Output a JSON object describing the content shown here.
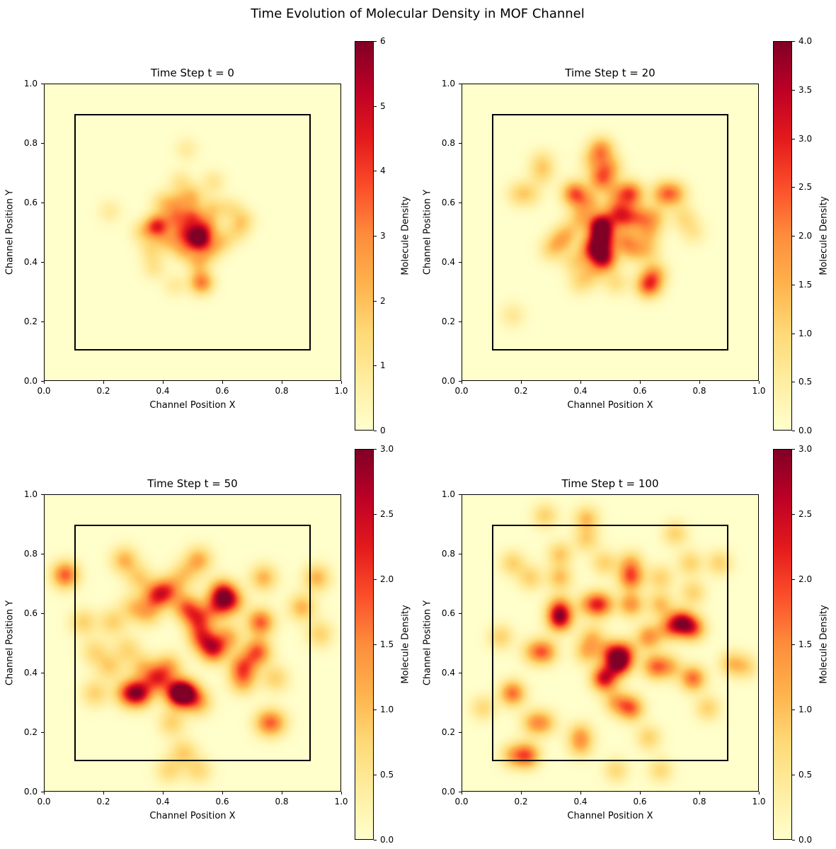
{
  "figure": {
    "suptitle": "Time Evolution of Molecular Density in MOF Channel",
    "background": "#ffffff",
    "text_color": "#000000"
  },
  "colormap": {
    "name": "YlOrRd",
    "stops": [
      {
        "t": 0.0,
        "color": "#ffffcc"
      },
      {
        "t": 0.125,
        "color": "#ffeda0"
      },
      {
        "t": 0.25,
        "color": "#fed976"
      },
      {
        "t": 0.375,
        "color": "#feb24c"
      },
      {
        "t": 0.5,
        "color": "#fd8d3c"
      },
      {
        "t": 0.625,
        "color": "#fc4e2a"
      },
      {
        "t": 0.75,
        "color": "#e31a1c"
      },
      {
        "t": 0.875,
        "color": "#bd0026"
      },
      {
        "t": 1.0,
        "color": "#800026"
      }
    ]
  },
  "chart_data": {
    "type": "heatmap",
    "layout": "2x2 subplots, each with vertical colorbar",
    "suptitle": "Time Evolution of Molecular Density in MOF Channel",
    "panels": [
      {
        "title": "Time Step t = 0",
        "xlabel": "Channel Position X",
        "ylabel": "Channel Position Y",
        "xlim": [
          0,
          1
        ],
        "ylim": [
          0,
          1
        ],
        "xtick_values": [
          0,
          0.2,
          0.4,
          0.6,
          0.8,
          1.0
        ],
        "xtick_labels": [
          "0.0",
          "0.2",
          "0.4",
          "0.6",
          "0.8",
          "1.0"
        ],
        "ytick_values": [
          0,
          0.2,
          0.4,
          0.6,
          0.8,
          1.0
        ],
        "ytick_labels": [
          "0.0",
          "0.2",
          "0.4",
          "0.6",
          "0.8",
          "1.0"
        ],
        "channel_box": {
          "x0": 0.1,
          "y0": 0.1,
          "x1": 0.9,
          "y1": 0.9
        },
        "colorbar": {
          "label": "Molecule Density",
          "vmin": 0,
          "vmax": 6,
          "tick_values": [
            0,
            1,
            2,
            3,
            4,
            5,
            6
          ],
          "tick_labels": [
            "0",
            "1",
            "2",
            "3",
            "4",
            "5",
            "6"
          ]
        },
        "smoothing_sigma": 0.028,
        "density_points": [
          [
            0.52,
            0.48,
            6.0
          ],
          [
            0.38,
            0.52,
            4.2
          ],
          [
            0.5,
            0.55,
            3.0
          ],
          [
            0.53,
            0.33,
            3.2
          ],
          [
            0.47,
            0.5,
            2.5
          ],
          [
            0.44,
            0.55,
            2.2
          ],
          [
            0.55,
            0.52,
            2.2
          ],
          [
            0.47,
            0.44,
            1.8
          ],
          [
            0.56,
            0.44,
            1.6
          ],
          [
            0.42,
            0.47,
            1.6
          ],
          [
            0.4,
            0.6,
            1.4
          ],
          [
            0.5,
            0.62,
            1.8
          ],
          [
            0.57,
            0.58,
            1.4
          ],
          [
            0.67,
            0.54,
            1.4
          ],
          [
            0.63,
            0.58,
            1.0
          ],
          [
            0.65,
            0.5,
            1.0
          ],
          [
            0.46,
            0.67,
            1.0
          ],
          [
            0.57,
            0.67,
            1.0
          ],
          [
            0.48,
            0.78,
            0.8
          ],
          [
            0.22,
            0.57,
            0.8
          ],
          [
            0.37,
            0.38,
            1.0
          ],
          [
            0.44,
            0.32,
            0.8
          ],
          [
            0.36,
            0.44,
            1.2
          ],
          [
            0.52,
            0.4,
            1.8
          ],
          [
            0.6,
            0.47,
            1.4
          ],
          [
            0.33,
            0.5,
            1.2
          ],
          [
            0.45,
            0.6,
            1.5
          ]
        ]
      },
      {
        "title": "Time Step t = 20",
        "xlabel": "Channel Position X",
        "ylabel": "Channel Position Y",
        "xlim": [
          0,
          1
        ],
        "ylim": [
          0,
          1
        ],
        "xtick_values": [
          0,
          0.2,
          0.4,
          0.6,
          0.8,
          1.0
        ],
        "xtick_labels": [
          "0.0",
          "0.2",
          "0.4",
          "0.6",
          "0.8",
          "1.0"
        ],
        "ytick_values": [
          0,
          0.2,
          0.4,
          0.6,
          0.8,
          1.0
        ],
        "ytick_labels": [
          "0.0",
          "0.2",
          "0.4",
          "0.6",
          "0.8",
          "1.0"
        ],
        "channel_box": {
          "x0": 0.1,
          "y0": 0.1,
          "x1": 0.9,
          "y1": 0.9
        },
        "colorbar": {
          "label": "Molecule Density",
          "vmin": 0,
          "vmax": 4,
          "tick_values": [
            0,
            0.5,
            1,
            1.5,
            2,
            2.5,
            3,
            3.5,
            4
          ],
          "tick_labels": [
            "0.0",
            "0.5",
            "1.0",
            "1.5",
            "2.0",
            "2.5",
            "3.0",
            "3.5",
            "4.0"
          ]
        },
        "smoothing_sigma": 0.03,
        "density_points": [
          [
            0.47,
            0.52,
            4.0
          ],
          [
            0.47,
            0.47,
            2.8
          ],
          [
            0.48,
            0.41,
            3.0
          ],
          [
            0.44,
            0.44,
            2.2
          ],
          [
            0.38,
            0.63,
            2.4
          ],
          [
            0.57,
            0.63,
            2.4
          ],
          [
            0.47,
            0.78,
            1.8
          ],
          [
            0.47,
            0.68,
            2.0
          ],
          [
            0.5,
            0.72,
            1.3
          ],
          [
            0.63,
            0.32,
            2.4
          ],
          [
            0.65,
            0.36,
            1.4
          ],
          [
            0.68,
            0.63,
            1.6
          ],
          [
            0.72,
            0.63,
            1.4
          ],
          [
            0.55,
            0.55,
            1.8
          ],
          [
            0.6,
            0.55,
            1.4
          ],
          [
            0.63,
            0.5,
            1.1
          ],
          [
            0.65,
            0.55,
            1.1
          ],
          [
            0.55,
            0.47,
            1.4
          ],
          [
            0.58,
            0.44,
            1.1
          ],
          [
            0.4,
            0.55,
            1.1
          ],
          [
            0.33,
            0.47,
            1.1
          ],
          [
            0.36,
            0.5,
            0.9
          ],
          [
            0.3,
            0.44,
            0.8
          ],
          [
            0.19,
            0.63,
            0.8
          ],
          [
            0.23,
            0.63,
            0.7
          ],
          [
            0.27,
            0.7,
            0.8
          ],
          [
            0.27,
            0.74,
            0.7
          ],
          [
            0.44,
            0.74,
            0.9
          ],
          [
            0.52,
            0.63,
            1.0
          ],
          [
            0.63,
            0.44,
            0.9
          ],
          [
            0.17,
            0.22,
            0.6
          ],
          [
            0.4,
            0.33,
            0.8
          ],
          [
            0.44,
            0.36,
            0.8
          ],
          [
            0.52,
            0.33,
            0.8
          ],
          [
            0.75,
            0.55,
            0.8
          ],
          [
            0.78,
            0.5,
            0.6
          ],
          [
            0.52,
            0.57,
            1.5
          ],
          [
            0.43,
            0.6,
            1.2
          ],
          [
            0.38,
            0.4,
            0.9
          ]
        ]
      },
      {
        "title": "Time Step t = 50",
        "xlabel": "Channel Position X",
        "ylabel": "Channel Position Y",
        "xlim": [
          0,
          1
        ],
        "ylim": [
          0,
          1
        ],
        "xtick_values": [
          0,
          0.2,
          0.4,
          0.6,
          0.8,
          1.0
        ],
        "xtick_labels": [
          "0.0",
          "0.2",
          "0.4",
          "0.6",
          "0.8",
          "1.0"
        ],
        "ytick_values": [
          0,
          0.2,
          0.4,
          0.6,
          0.8,
          1.0
        ],
        "ytick_labels": [
          "0.0",
          "0.2",
          "0.4",
          "0.6",
          "0.8",
          "1.0"
        ],
        "channel_box": {
          "x0": 0.1,
          "y0": 0.1,
          "x1": 0.9,
          "y1": 0.9
        },
        "colorbar": {
          "label": "Molecule Density",
          "vmin": 0,
          "vmax": 3,
          "tick_values": [
            0,
            0.5,
            1,
            1.5,
            2,
            2.5,
            3
          ],
          "tick_labels": [
            "0.0",
            "0.5",
            "1.0",
            "1.5",
            "2.0",
            "2.5",
            "3.0"
          ]
        },
        "smoothing_sigma": 0.032,
        "density_points": [
          [
            0.07,
            0.73,
            1.8
          ],
          [
            0.27,
            0.78,
            1.1
          ],
          [
            0.52,
            0.78,
            1.2
          ],
          [
            0.32,
            0.72,
            0.8
          ],
          [
            0.47,
            0.73,
            0.8
          ],
          [
            0.74,
            0.72,
            1.1
          ],
          [
            0.92,
            0.72,
            1.1
          ],
          [
            0.38,
            0.66,
            1.8
          ],
          [
            0.42,
            0.68,
            1.3
          ],
          [
            0.48,
            0.62,
            1.6
          ],
          [
            0.52,
            0.58,
            1.6
          ],
          [
            0.6,
            0.67,
            2.0
          ],
          [
            0.63,
            0.64,
            1.6
          ],
          [
            0.58,
            0.62,
            1.3
          ],
          [
            0.73,
            0.57,
            1.8
          ],
          [
            0.87,
            0.62,
            1.1
          ],
          [
            0.93,
            0.53,
            0.8
          ],
          [
            0.13,
            0.57,
            0.8
          ],
          [
            0.23,
            0.57,
            0.8
          ],
          [
            0.17,
            0.47,
            0.7
          ],
          [
            0.28,
            0.48,
            0.7
          ],
          [
            0.57,
            0.48,
            2.2
          ],
          [
            0.53,
            0.52,
            1.6
          ],
          [
            0.62,
            0.52,
            1.1
          ],
          [
            0.72,
            0.47,
            1.8
          ],
          [
            0.67,
            0.42,
            1.6
          ],
          [
            0.67,
            0.37,
            1.1
          ],
          [
            0.38,
            0.38,
            1.8
          ],
          [
            0.42,
            0.42,
            1.1
          ],
          [
            0.32,
            0.33,
            2.3
          ],
          [
            0.28,
            0.33,
            1.4
          ],
          [
            0.45,
            0.33,
            2.5
          ],
          [
            0.48,
            0.33,
            2.0
          ],
          [
            0.52,
            0.3,
            1.1
          ],
          [
            0.17,
            0.33,
            0.8
          ],
          [
            0.22,
            0.42,
            0.8
          ],
          [
            0.33,
            0.42,
            0.8
          ],
          [
            0.78,
            0.38,
            0.8
          ],
          [
            0.75,
            0.23,
            1.1
          ],
          [
            0.78,
            0.23,
            0.9
          ],
          [
            0.43,
            0.23,
            0.8
          ],
          [
            0.47,
            0.13,
            0.8
          ],
          [
            0.42,
            0.07,
            0.7
          ],
          [
            0.52,
            0.07,
            0.7
          ],
          [
            0.35,
            0.6,
            0.9
          ],
          [
            0.3,
            0.62,
            0.8
          ]
        ]
      },
      {
        "title": "Time Step t = 100",
        "xlabel": "Channel Position X",
        "ylabel": "Channel Position Y",
        "xlim": [
          0,
          1
        ],
        "ylim": [
          0,
          1
        ],
        "xtick_values": [
          0,
          0.2,
          0.4,
          0.6,
          0.8,
          1.0
        ],
        "xtick_labels": [
          "0.0",
          "0.2",
          "0.4",
          "0.6",
          "0.8",
          "1.0"
        ],
        "ytick_values": [
          0,
          0.2,
          0.4,
          0.6,
          0.8,
          1.0
        ],
        "ytick_labels": [
          "0.0",
          "0.2",
          "0.4",
          "0.6",
          "0.8",
          "1.0"
        ],
        "channel_box": {
          "x0": 0.1,
          "y0": 0.1,
          "x1": 0.9,
          "y1": 0.9
        },
        "colorbar": {
          "label": "Molecule Density",
          "vmin": 0,
          "vmax": 3,
          "tick_values": [
            0,
            0.5,
            1,
            1.5,
            2,
            2.5,
            3
          ],
          "tick_labels": [
            "0.0",
            "0.5",
            "1.0",
            "1.5",
            "2.0",
            "2.5",
            "3.0"
          ]
        },
        "smoothing_sigma": 0.03,
        "density_points": [
          [
            0.28,
            0.93,
            0.8
          ],
          [
            0.42,
            0.92,
            1.0
          ],
          [
            0.42,
            0.85,
            0.8
          ],
          [
            0.72,
            0.87,
            0.8
          ],
          [
            0.17,
            0.77,
            0.8
          ],
          [
            0.23,
            0.72,
            0.8
          ],
          [
            0.33,
            0.8,
            0.9
          ],
          [
            0.33,
            0.72,
            1.0
          ],
          [
            0.48,
            0.77,
            0.8
          ],
          [
            0.57,
            0.77,
            1.0
          ],
          [
            0.57,
            0.72,
            1.7
          ],
          [
            0.67,
            0.72,
            0.8
          ],
          [
            0.77,
            0.77,
            0.8
          ],
          [
            0.87,
            0.77,
            0.8
          ],
          [
            0.78,
            0.67,
            0.8
          ],
          [
            0.33,
            0.62,
            1.4
          ],
          [
            0.33,
            0.58,
            2.3
          ],
          [
            0.43,
            0.63,
            1.1
          ],
          [
            0.47,
            0.63,
            1.7
          ],
          [
            0.57,
            0.63,
            1.4
          ],
          [
            0.67,
            0.63,
            1.0
          ],
          [
            0.13,
            0.52,
            0.8
          ],
          [
            0.74,
            0.57,
            2.2
          ],
          [
            0.78,
            0.55,
            1.7
          ],
          [
            0.7,
            0.55,
            1.2
          ],
          [
            0.63,
            0.52,
            1.4
          ],
          [
            0.28,
            0.47,
            1.4
          ],
          [
            0.24,
            0.47,
            0.9
          ],
          [
            0.53,
            0.43,
            2.6
          ],
          [
            0.5,
            0.47,
            1.4
          ],
          [
            0.55,
            0.47,
            1.4
          ],
          [
            0.48,
            0.38,
            2.4
          ],
          [
            0.65,
            0.42,
            1.5
          ],
          [
            0.7,
            0.42,
            1.0
          ],
          [
            0.78,
            0.38,
            1.7
          ],
          [
            0.91,
            0.43,
            0.9
          ],
          [
            0.96,
            0.42,
            0.7
          ],
          [
            0.17,
            0.33,
            1.7
          ],
          [
            0.07,
            0.28,
            0.7
          ],
          [
            0.57,
            0.28,
            1.7
          ],
          [
            0.52,
            0.3,
            1.1
          ],
          [
            0.83,
            0.28,
            0.8
          ],
          [
            0.24,
            0.23,
            1.0
          ],
          [
            0.28,
            0.23,
            0.9
          ],
          [
            0.4,
            0.19,
            1.0
          ],
          [
            0.4,
            0.15,
            0.8
          ],
          [
            0.63,
            0.18,
            0.8
          ],
          [
            0.22,
            0.12,
            1.7
          ],
          [
            0.17,
            0.12,
            1.0
          ],
          [
            0.52,
            0.07,
            0.7
          ],
          [
            0.67,
            0.07,
            0.7
          ],
          [
            0.42,
            0.47,
            1.0
          ],
          [
            0.44,
            0.52,
            0.9
          ]
        ]
      }
    ]
  }
}
